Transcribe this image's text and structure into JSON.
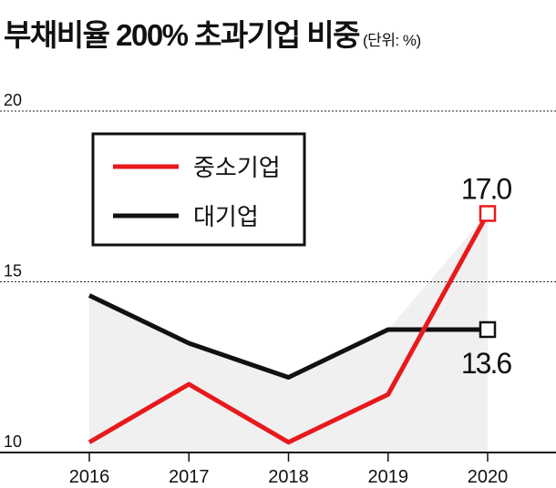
{
  "title": "부채비율 200% 초과기업 비중",
  "unit": "(단위: %)",
  "chart_data": {
    "type": "line",
    "title": "부채비율 200% 초과기업 비중",
    "unit": "(단위: %)",
    "x": [
      "2016",
      "2017",
      "2018",
      "2019",
      "2020"
    ],
    "series": [
      {
        "name": "중소기업",
        "color": "#e8191c",
        "values": [
          10.3,
          12.0,
          10.3,
          11.7,
          17.0
        ],
        "end_label": "17.0"
      },
      {
        "name": "대기업",
        "color": "#111111",
        "values": [
          14.6,
          13.2,
          12.2,
          13.6,
          13.6
        ],
        "end_label": "13.6"
      }
    ],
    "yticks": [
      10,
      15,
      20
    ],
    "ylim": [
      10,
      20
    ],
    "grid": true,
    "legend_position": "top-left",
    "xlabel": "",
    "ylabel": ""
  }
}
